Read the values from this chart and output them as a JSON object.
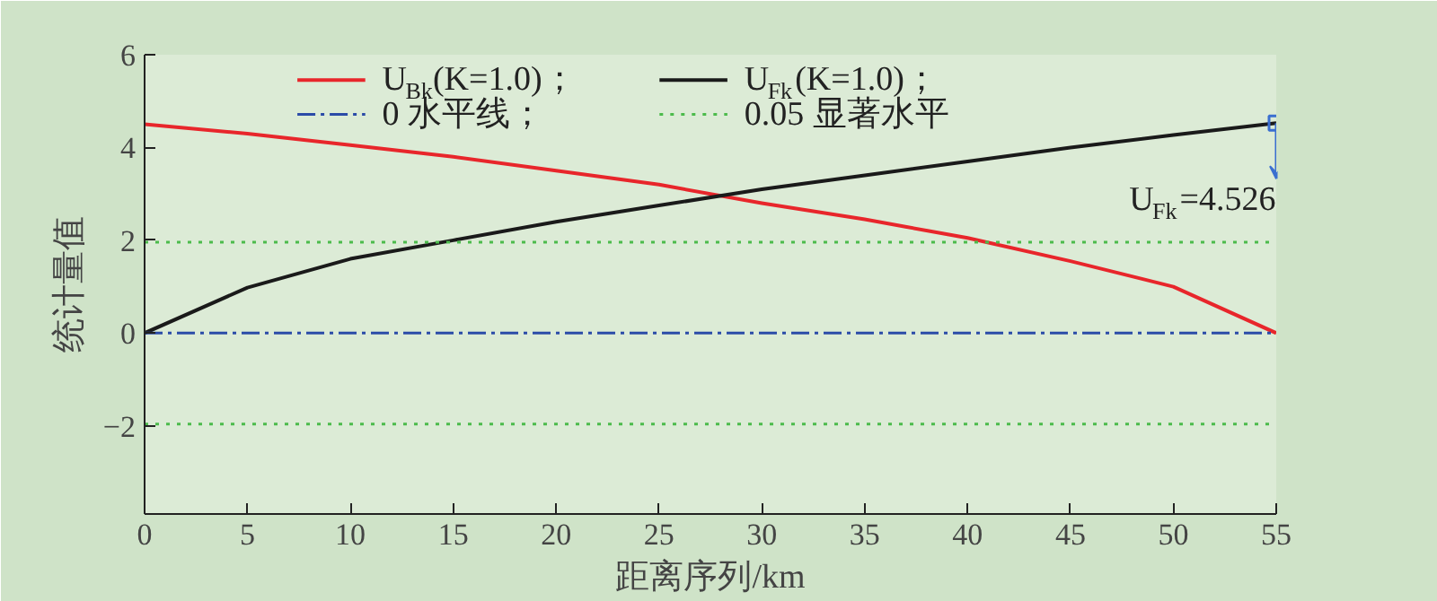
{
  "chart_data": {
    "type": "line",
    "xlabel": "距离序列/km",
    "ylabel": "统计量值",
    "x": [
      0,
      5,
      10,
      15,
      20,
      25,
      30,
      35,
      40,
      45,
      50,
      55
    ],
    "series": [
      {
        "name": "U$_{Bk}$(K=1.0)；",
        "color": "#e8262b",
        "values": [
          4.5,
          4.3,
          4.05,
          3.8,
          3.5,
          3.2,
          2.8,
          2.45,
          2.05,
          1.55,
          1.0,
          0
        ]
      },
      {
        "name": "U$_{Fk}$(K=1.0)；",
        "color": "#1a1a1a",
        "values": [
          0,
          0.98,
          1.6,
          2.0,
          2.4,
          2.75,
          3.1,
          3.4,
          3.7,
          4.0,
          4.27,
          4.526
        ]
      }
    ],
    "ref_lines": [
      {
        "axis": "y",
        "value": 0,
        "label": "0 水平线；",
        "color": "#2b4ba8",
        "line_style": "dashdot"
      },
      {
        "axis": "y",
        "value": 1.96,
        "label": "0.05 显著水平",
        "color": "#4cbb4c",
        "line_style": "dotted"
      },
      {
        "axis": "y",
        "value": -1.96,
        "label": null,
        "color": "#4cbb4c",
        "line_style": "dotted"
      }
    ],
    "annotations": [
      {
        "text": "U$_{Fk}$=4.526",
        "x": 55,
        "y": 4.526
      }
    ],
    "xlim": [
      0,
      55
    ],
    "xticks": [
      0,
      5,
      10,
      15,
      20,
      25,
      30,
      35,
      40,
      45,
      50,
      55
    ],
    "ylim": [
      -3.9,
      6
    ],
    "yticks": [
      {
        "value": -2,
        "label": "−2"
      },
      0,
      2,
      4,
      6
    ],
    "grid": false,
    "legend": "top",
    "marker": "none",
    "line_style": "solid"
  }
}
